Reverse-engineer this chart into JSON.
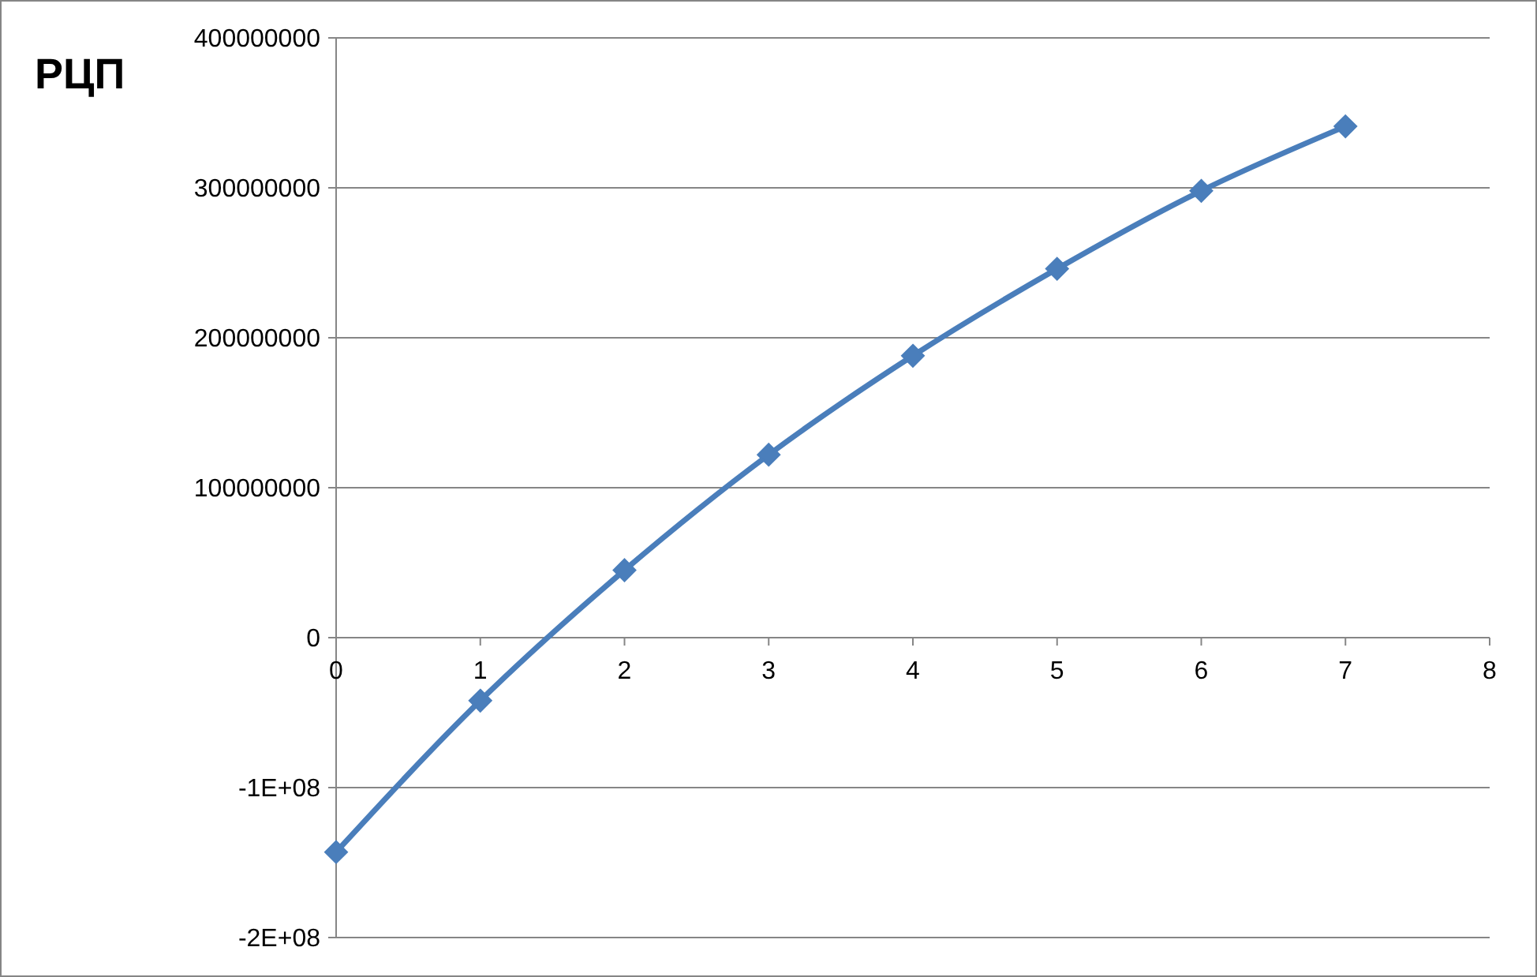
{
  "chart_data": {
    "type": "line",
    "title": "РЦП",
    "x": [
      0,
      1,
      2,
      3,
      4,
      5,
      6,
      7
    ],
    "series": [
      {
        "color": "#4a7ebb",
        "values": [
          -143000000,
          -42000000,
          45000000,
          122000000,
          188000000,
          246000000,
          298000000,
          341000000
        ]
      }
    ],
    "xlim": [
      0,
      8
    ],
    "xticks": [
      0,
      1,
      2,
      3,
      4,
      5,
      6,
      7,
      8
    ],
    "ylim": [
      -200000000,
      400000000
    ],
    "yticks": [
      {
        "value": -200000000,
        "label": "-2E+08"
      },
      {
        "value": -100000000,
        "label": "-1E+08"
      },
      0,
      100000000,
      200000000,
      300000000,
      400000000
    ],
    "grid": "y",
    "marker": "diamond",
    "line_style": "solid"
  }
}
